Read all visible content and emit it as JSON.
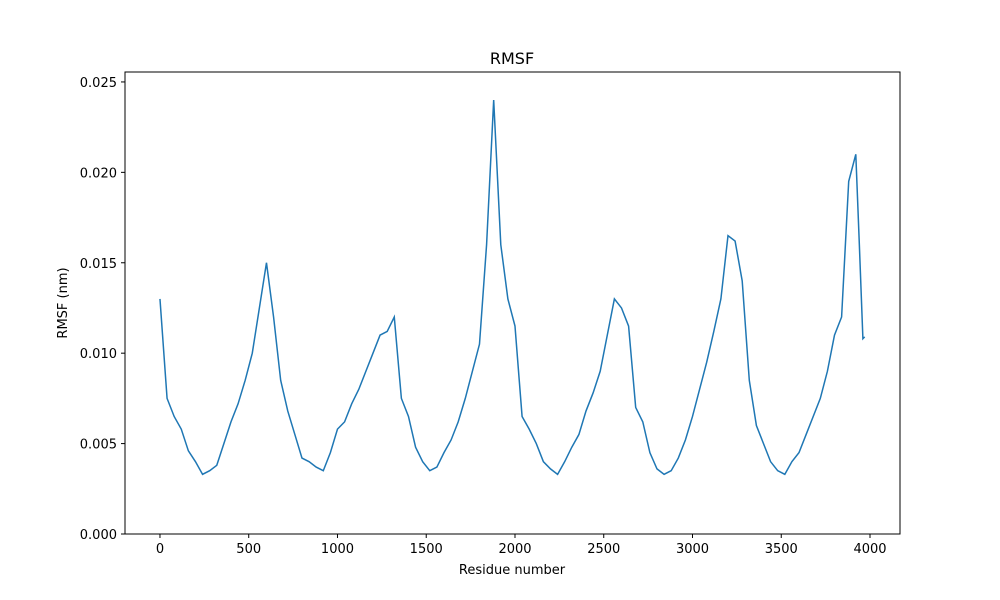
{
  "chart_data": {
    "type": "line",
    "title": "RMSF",
    "x_label": "Residue number",
    "y_label": "RMSF (nm)",
    "x": [
      0,
      40,
      80,
      120,
      160,
      200,
      240,
      280,
      320,
      360,
      400,
      440,
      480,
      520,
      560,
      600,
      640,
      680,
      720,
      760,
      800,
      840,
      880,
      920,
      960,
      1000,
      1040,
      1080,
      1120,
      1160,
      1200,
      1240,
      1280,
      1320,
      1360,
      1400,
      1440,
      1480,
      1520,
      1560,
      1600,
      1640,
      1680,
      1720,
      1760,
      1800,
      1840,
      1880,
      1920,
      1960,
      2000,
      2040,
      2080,
      2120,
      2160,
      2200,
      2240,
      2280,
      2320,
      2360,
      2400,
      2440,
      2480,
      2520,
      2560,
      2600,
      2640,
      2680,
      2720,
      2760,
      2800,
      2840,
      2880,
      2920,
      2960,
      3000,
      3040,
      3080,
      3120,
      3160,
      3200,
      3240,
      3280,
      3320,
      3360,
      3400,
      3440,
      3480,
      3520,
      3560,
      3600,
      3640,
      3680,
      3720,
      3760,
      3800,
      3840,
      3880,
      3920,
      3940,
      3960,
      3970
    ],
    "series": [
      {
        "name": "RMSF",
        "color": "#1f77b4",
        "values": [
          0.013,
          0.0075,
          0.0065,
          0.0058,
          0.0046,
          0.004,
          0.0033,
          0.0035,
          0.0038,
          0.005,
          0.0062,
          0.0072,
          0.0085,
          0.01,
          0.0125,
          0.015,
          0.012,
          0.0085,
          0.0068,
          0.0055,
          0.0042,
          0.004,
          0.0037,
          0.0035,
          0.0045,
          0.0058,
          0.0062,
          0.0072,
          0.008,
          0.009,
          0.01,
          0.011,
          0.0112,
          0.012,
          0.0075,
          0.0065,
          0.0048,
          0.004,
          0.0035,
          0.0037,
          0.0045,
          0.0052,
          0.0062,
          0.0075,
          0.009,
          0.0105,
          0.016,
          0.024,
          0.016,
          0.013,
          0.0115,
          0.0065,
          0.0058,
          0.005,
          0.004,
          0.0036,
          0.0033,
          0.004,
          0.0048,
          0.0055,
          0.0068,
          0.0078,
          0.009,
          0.011,
          0.013,
          0.0125,
          0.0115,
          0.007,
          0.0062,
          0.0045,
          0.0036,
          0.0033,
          0.0035,
          0.0042,
          0.0052,
          0.0065,
          0.008,
          0.0095,
          0.0112,
          0.013,
          0.0165,
          0.0162,
          0.014,
          0.0085,
          0.006,
          0.005,
          0.004,
          0.0035,
          0.0033,
          0.004,
          0.0045,
          0.0055,
          0.0065,
          0.0075,
          0.009,
          0.011,
          0.012,
          0.0195,
          0.021,
          0.016,
          0.0108,
          0.0109
        ]
      }
    ],
    "xlim": [
      -197,
      4169
    ],
    "ylim": [
      0,
      0.02555
    ],
    "xticks": [
      0,
      500,
      1000,
      1500,
      2000,
      2500,
      3000,
      3500,
      4000
    ],
    "yticks": [
      {
        "value": 0,
        "label": "0.000"
      },
      {
        "value": 0.005,
        "label": "0.005"
      },
      {
        "value": 0.01,
        "label": "0.010"
      },
      {
        "value": 0.015,
        "label": "0.015"
      },
      {
        "value": 0.02,
        "label": "0.020"
      },
      {
        "value": 0.025,
        "label": "0.025"
      }
    ]
  }
}
